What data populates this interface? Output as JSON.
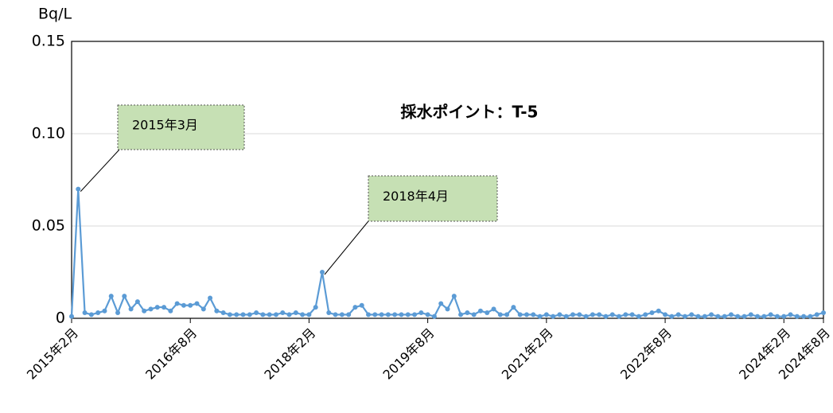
{
  "chart_data": {
    "type": "line",
    "title": "採水ポイント：T-5",
    "y_label": "Bq/L",
    "x": [
      "2015-02",
      "2015-03",
      "2015-04",
      "2015-05",
      "2015-06",
      "2015-07",
      "2015-08",
      "2015-09",
      "2015-10",
      "2015-11",
      "2015-12",
      "2016-01",
      "2016-02",
      "2016-03",
      "2016-04",
      "2016-05",
      "2016-06",
      "2016-07",
      "2016-08",
      "2016-09",
      "2016-10",
      "2016-11",
      "2016-12",
      "2017-01",
      "2017-02",
      "2017-03",
      "2017-04",
      "2017-05",
      "2017-06",
      "2017-07",
      "2017-08",
      "2017-09",
      "2017-10",
      "2017-11",
      "2017-12",
      "2018-01",
      "2018-02",
      "2018-03",
      "2018-04",
      "2018-05",
      "2018-06",
      "2018-07",
      "2018-08",
      "2018-09",
      "2018-10",
      "2018-11",
      "2018-12",
      "2019-01",
      "2019-02",
      "2019-03",
      "2019-04",
      "2019-05",
      "2019-06",
      "2019-07",
      "2019-08",
      "2019-09",
      "2019-10",
      "2019-11",
      "2019-12",
      "2020-01",
      "2020-02",
      "2020-03",
      "2020-04",
      "2020-05",
      "2020-06",
      "2020-07",
      "2020-08",
      "2020-09",
      "2020-10",
      "2020-11",
      "2020-12",
      "2021-01",
      "2021-02",
      "2021-03",
      "2021-04",
      "2021-05",
      "2021-06",
      "2021-07",
      "2021-08",
      "2021-09",
      "2021-10",
      "2021-11",
      "2021-12",
      "2022-01",
      "2022-02",
      "2022-03",
      "2022-04",
      "2022-05",
      "2022-06",
      "2022-07",
      "2022-08",
      "2022-09",
      "2022-10",
      "2022-11",
      "2022-12",
      "2023-01",
      "2023-02",
      "2023-03",
      "2023-04",
      "2023-05",
      "2023-06",
      "2023-07",
      "2023-08",
      "2023-09",
      "2023-10",
      "2023-11",
      "2023-12",
      "2024-01",
      "2024-02",
      "2024-03",
      "2024-04",
      "2024-05",
      "2024-06",
      "2024-07",
      "2024-08"
    ],
    "series": [
      {
        "name": "T-5",
        "color": "#5b9bd5",
        "values": [
          0.001,
          0.07,
          0.003,
          0.002,
          0.003,
          0.004,
          0.012,
          0.003,
          0.012,
          0.005,
          0.009,
          0.004,
          0.005,
          0.006,
          0.006,
          0.004,
          0.008,
          0.007,
          0.007,
          0.008,
          0.005,
          0.011,
          0.004,
          0.003,
          0.002,
          0.002,
          0.002,
          0.002,
          0.003,
          0.002,
          0.002,
          0.002,
          0.003,
          0.002,
          0.003,
          0.002,
          0.002,
          0.006,
          0.025,
          0.003,
          0.002,
          0.002,
          0.002,
          0.006,
          0.007,
          0.002,
          0.002,
          0.002,
          0.002,
          0.002,
          0.002,
          0.002,
          0.002,
          0.003,
          0.002,
          0.001,
          0.008,
          0.005,
          0.012,
          0.002,
          0.003,
          0.002,
          0.004,
          0.003,
          0.005,
          0.002,
          0.002,
          0.006,
          0.002,
          0.002,
          0.002,
          0.001,
          0.002,
          0.001,
          0.002,
          0.001,
          0.002,
          0.002,
          0.001,
          0.002,
          0.002,
          0.001,
          0.002,
          0.001,
          0.002,
          0.002,
          0.001,
          0.002,
          0.003,
          0.004,
          0.002,
          0.001,
          0.002,
          0.001,
          0.002,
          0.001,
          0.001,
          0.002,
          0.001,
          0.001,
          0.002,
          0.001,
          0.001,
          0.002,
          0.001,
          0.001,
          0.002,
          0.001,
          0.001,
          0.002,
          0.001,
          0.001,
          0.001,
          0.002,
          0.003
        ]
      }
    ],
    "xlim": [
      "2015-02",
      "2024-08"
    ],
    "xticks": [
      {
        "value": "2015-02",
        "label": "2015年2月"
      },
      {
        "value": "2016-08",
        "label": "2016年8月"
      },
      {
        "value": "2018-02",
        "label": "2018年2月"
      },
      {
        "value": "2019-08",
        "label": "2019年8月"
      },
      {
        "value": "2021-02",
        "label": "2021年2月"
      },
      {
        "value": "2022-08",
        "label": "2022年8月"
      },
      {
        "value": "2024-02",
        "label": "2024年2月"
      },
      {
        "value": "2024-08",
        "label": "2024年8月"
      }
    ],
    "ylim": [
      0,
      0.15
    ],
    "yticks": [
      0,
      0.05,
      {
        "value": 0.1,
        "label": "0.10"
      },
      0.15
    ],
    "grid": true,
    "annotations": [
      {
        "text": "2015年3月",
        "x": "2015-03"
      },
      {
        "text": "2018年4月",
        "x": "2018-04"
      }
    ]
  }
}
